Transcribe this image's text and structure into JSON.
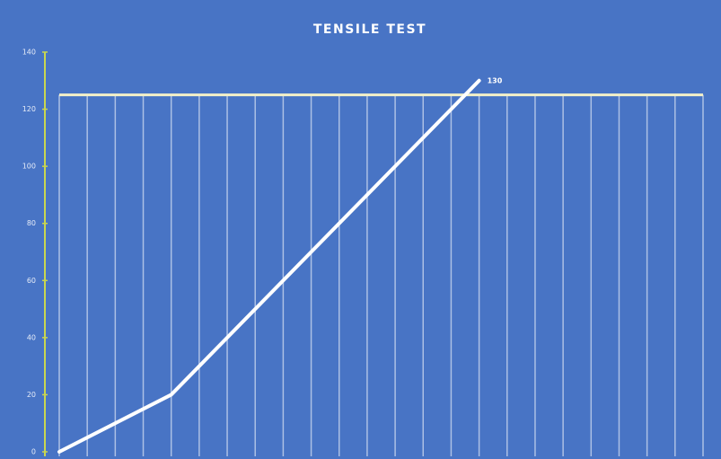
{
  "chart_data": {
    "type": "line",
    "title": "TENSILE TEST",
    "x": [
      0,
      4,
      15
    ],
    "values": [
      0,
      20,
      130
    ],
    "color": "#ffffff",
    "xlim": [
      0,
      23
    ],
    "ylim": [
      0,
      140
    ],
    "yticks": [
      0,
      20,
      40,
      60,
      80,
      100,
      120,
      140
    ],
    "reference_line": {
      "value": 125,
      "color": "#f3f0c8"
    },
    "axis_color": "#c9d64f",
    "background": "#4874c5",
    "grid": true
  }
}
